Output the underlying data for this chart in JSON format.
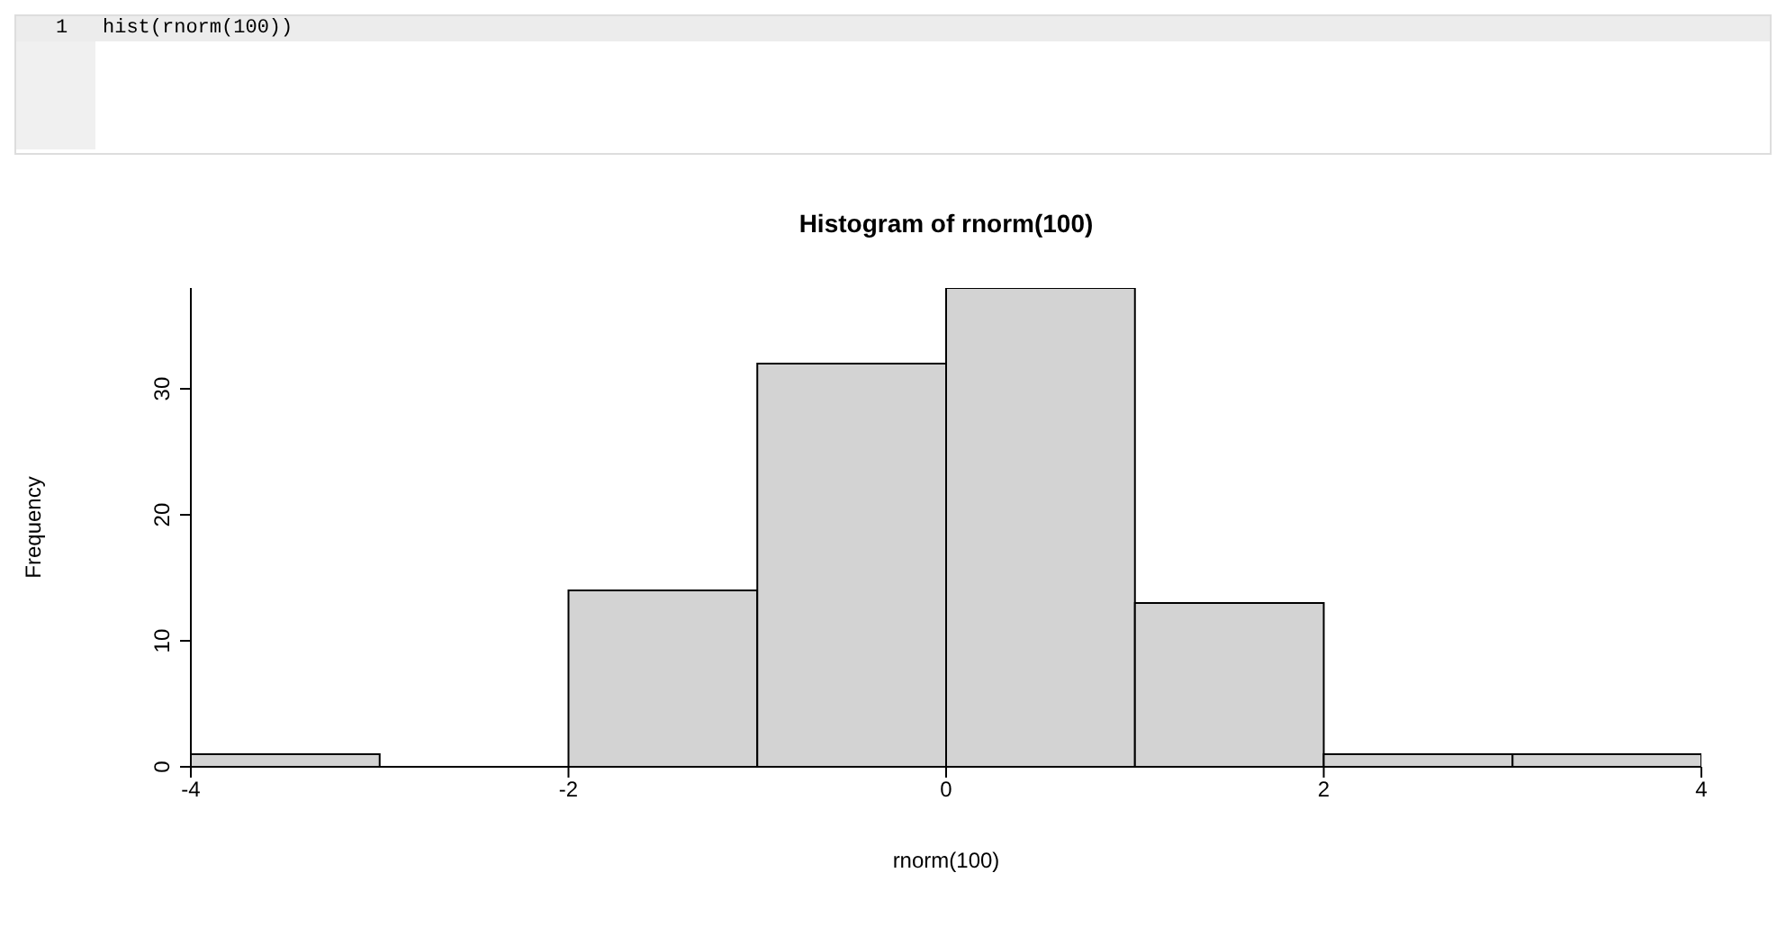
{
  "chart_data": {
    "type": "histogram",
    "title": "Histogram of rnorm(100)",
    "xlabel": "rnorm(100)",
    "ylabel": "Frequency",
    "bins": [
      -4,
      -3,
      -2,
      -1,
      0,
      1,
      2,
      3,
      4
    ],
    "values": [
      1,
      0,
      14,
      32,
      38,
      13,
      1,
      1
    ],
    "color": "#d3d3d3",
    "xlim": [
      -4,
      4
    ],
    "ylim": [
      0,
      38
    ],
    "xticks": [
      -4,
      -2,
      0,
      2,
      4
    ],
    "yticks": [
      0,
      10,
      20,
      30
    ],
    "annotations": [
      "1",
      "hist(rnorm(100))"
    ]
  }
}
